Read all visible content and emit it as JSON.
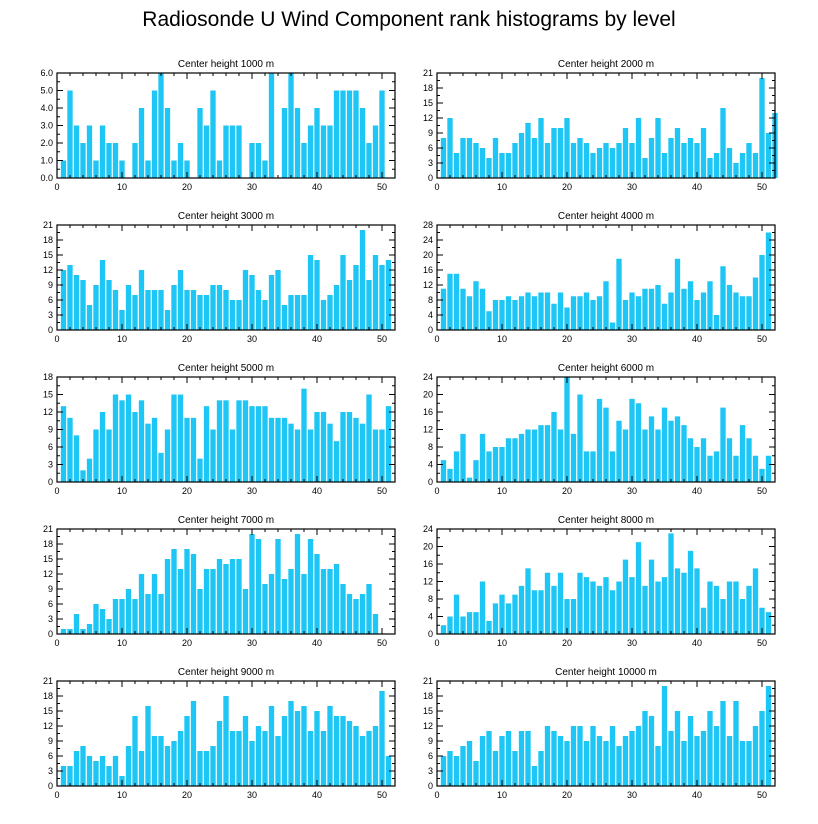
{
  "figure": {
    "title": "Radiosonde U Wind Component rank histograms by level",
    "bar_color": "#1ec6f5"
  },
  "chart_data": [
    {
      "type": "bar",
      "title": "Center height 1000 m",
      "xlim": [
        0,
        52
      ],
      "ylim": [
        0,
        6
      ],
      "xticks": [
        0,
        10,
        20,
        30,
        40,
        50
      ],
      "yticks": [
        0,
        1,
        2,
        3,
        4,
        5,
        6
      ],
      "ytick_labels": [
        "0.0",
        "1.0",
        "2.0",
        "3.0",
        "4.0",
        "5.0",
        "6.0"
      ],
      "values": [
        1,
        5,
        3,
        2,
        3,
        1,
        3,
        2,
        2,
        1,
        0,
        2,
        4,
        1,
        5,
        6,
        4,
        1,
        2,
        1,
        0,
        4,
        3,
        5,
        1,
        3,
        3,
        3,
        0,
        2,
        2,
        1,
        6,
        0,
        4,
        6,
        4,
        2,
        3,
        4,
        3,
        3,
        5,
        5,
        5,
        5,
        4,
        2,
        3,
        5
      ]
    },
    {
      "type": "bar",
      "title": "Center height 2000 m",
      "xlim": [
        0,
        52
      ],
      "ylim": [
        0,
        21
      ],
      "xticks": [
        0,
        10,
        20,
        30,
        40,
        50
      ],
      "yticks": [
        0,
        3,
        6,
        9,
        12,
        15,
        18,
        21
      ],
      "ytick_labels": [
        "0",
        "3",
        "6",
        "9",
        "12",
        "15",
        "18",
        "21"
      ],
      "values": [
        8,
        12,
        5,
        8,
        8,
        7,
        6,
        4,
        8,
        5,
        5,
        7,
        9,
        11,
        8,
        12,
        7,
        10,
        10,
        12,
        7,
        8,
        7,
        5,
        6,
        7,
        6,
        7,
        10,
        7,
        12,
        4,
        8,
        12,
        5,
        8,
        10,
        7,
        8,
        7,
        10,
        4,
        5,
        14,
        6,
        3,
        5,
        7,
        5,
        20,
        9,
        13
      ]
    },
    {
      "type": "bar",
      "title": "Center height 3000 m",
      "xlim": [
        0,
        52
      ],
      "ylim": [
        0,
        21
      ],
      "xticks": [
        0,
        10,
        20,
        30,
        40,
        50
      ],
      "yticks": [
        0,
        3,
        6,
        9,
        12,
        15,
        18,
        21
      ],
      "ytick_labels": [
        "0",
        "3",
        "6",
        "9",
        "12",
        "15",
        "18",
        "21"
      ],
      "values": [
        12,
        13,
        11,
        10,
        5,
        9,
        14,
        10,
        8,
        4,
        9,
        7,
        12,
        8,
        8,
        8,
        4,
        9,
        12,
        8,
        8,
        7,
        7,
        9,
        9,
        8,
        6,
        6,
        12,
        11,
        8,
        6,
        11,
        12,
        5,
        7,
        7,
        7,
        15,
        14,
        6,
        7,
        9,
        15,
        10,
        13,
        20,
        10,
        15,
        13,
        14
      ]
    },
    {
      "type": "bar",
      "title": "Center height 4000 m",
      "xlim": [
        0,
        52
      ],
      "ylim": [
        0,
        28
      ],
      "xticks": [
        0,
        10,
        20,
        30,
        40,
        50
      ],
      "yticks": [
        0,
        4,
        8,
        12,
        16,
        20,
        24,
        28
      ],
      "ytick_labels": [
        "0",
        "4",
        "8",
        "12",
        "16",
        "20",
        "24",
        "28"
      ],
      "values": [
        11,
        15,
        15,
        11,
        9,
        13,
        11,
        5,
        8,
        8,
        9,
        8,
        9,
        10,
        9,
        10,
        10,
        7,
        10,
        6,
        9,
        9,
        10,
        8,
        9,
        13,
        2,
        19,
        8,
        10,
        9,
        11,
        11,
        12,
        7,
        10,
        19,
        11,
        13,
        8,
        10,
        13,
        4,
        17,
        12,
        10,
        9,
        9,
        14,
        20,
        26
      ]
    },
    {
      "type": "bar",
      "title": "Center height 5000 m",
      "xlim": [
        0,
        52
      ],
      "ylim": [
        0,
        18
      ],
      "xticks": [
        0,
        10,
        20,
        30,
        40,
        50
      ],
      "yticks": [
        0,
        3,
        6,
        9,
        12,
        15,
        18
      ],
      "ytick_labels": [
        "0",
        "3",
        "6",
        "9",
        "12",
        "15",
        "18"
      ],
      "values": [
        13,
        11,
        8,
        2,
        4,
        9,
        12,
        9,
        15,
        14,
        15,
        12,
        14,
        10,
        11,
        5,
        9,
        15,
        15,
        11,
        11,
        4,
        13,
        9,
        14,
        14,
        9,
        14,
        14,
        13,
        13,
        13,
        11,
        11,
        11,
        10,
        9,
        16,
        9,
        12,
        12,
        10,
        7,
        12,
        12,
        11,
        10,
        15,
        9,
        9,
        13
      ]
    },
    {
      "type": "bar",
      "title": "Center height 6000 m",
      "xlim": [
        0,
        52
      ],
      "ylim": [
        0,
        24
      ],
      "xticks": [
        0,
        10,
        20,
        30,
        40,
        50
      ],
      "yticks": [
        0,
        4,
        8,
        12,
        16,
        20,
        24
      ],
      "ytick_labels": [
        "0",
        "4",
        "8",
        "12",
        "16",
        "20",
        "24"
      ],
      "values": [
        5,
        3,
        7,
        11,
        1,
        5,
        11,
        7,
        8,
        8,
        10,
        10,
        11,
        12,
        12,
        13,
        13,
        16,
        12,
        24,
        11,
        20,
        7,
        7,
        19,
        17,
        7,
        14,
        12,
        19,
        18,
        12,
        15,
        12,
        17,
        14,
        15,
        13,
        10,
        8,
        10,
        6,
        7,
        17,
        10,
        6,
        13,
        10,
        6,
        3,
        6
      ]
    },
    {
      "type": "bar",
      "title": "Center height 7000 m",
      "xlim": [
        0,
        52
      ],
      "ylim": [
        0,
        21
      ],
      "xticks": [
        0,
        10,
        20,
        30,
        40,
        50
      ],
      "yticks": [
        0,
        3,
        6,
        9,
        12,
        15,
        18,
        21
      ],
      "ytick_labels": [
        "0",
        "3",
        "6",
        "9",
        "12",
        "15",
        "18",
        "21"
      ],
      "values": [
        1,
        1,
        4,
        1,
        2,
        6,
        5,
        3,
        7,
        7,
        9,
        7,
        12,
        8,
        12,
        8,
        15,
        17,
        13,
        17,
        16,
        9,
        13,
        13,
        15,
        14,
        15,
        15,
        9,
        20,
        19,
        10,
        12,
        19,
        11,
        13,
        20,
        12,
        19,
        16,
        13,
        13,
        14,
        10,
        8,
        7,
        8,
        10,
        4
      ]
    },
    {
      "type": "bar",
      "title": "Center height 8000 m",
      "xlim": [
        0,
        52
      ],
      "ylim": [
        0,
        24
      ],
      "xticks": [
        0,
        10,
        20,
        30,
        40,
        50
      ],
      "yticks": [
        0,
        4,
        8,
        12,
        16,
        20,
        24
      ],
      "ytick_labels": [
        "0",
        "4",
        "8",
        "12",
        "16",
        "20",
        "24"
      ],
      "values": [
        2,
        4,
        9,
        4,
        5,
        5,
        12,
        3,
        7,
        9,
        7,
        9,
        11,
        15,
        10,
        10,
        14,
        11,
        14,
        8,
        8,
        14,
        13,
        12,
        11,
        13,
        10,
        12,
        17,
        13,
        21,
        11,
        17,
        12,
        13,
        23,
        15,
        14,
        19,
        15,
        6,
        12,
        11,
        8,
        12,
        12,
        8,
        11,
        15,
        6,
        5
      ]
    },
    {
      "type": "bar",
      "title": "Center height 9000 m",
      "xlim": [
        0,
        52
      ],
      "ylim": [
        0,
        21
      ],
      "xticks": [
        0,
        10,
        20,
        30,
        40,
        50
      ],
      "yticks": [
        0,
        3,
        6,
        9,
        12,
        15,
        18,
        21
      ],
      "ytick_labels": [
        "0",
        "3",
        "6",
        "9",
        "12",
        "15",
        "18",
        "21"
      ],
      "values": [
        4,
        4,
        7,
        8,
        6,
        5,
        6,
        4,
        6,
        2,
        8,
        14,
        7,
        16,
        10,
        10,
        8,
        9,
        11,
        14,
        17,
        7,
        7,
        8,
        13,
        18,
        11,
        11,
        14,
        9,
        12,
        11,
        16,
        10,
        14,
        17,
        15,
        16,
        11,
        15,
        11,
        16,
        14,
        14,
        13,
        12,
        10,
        11,
        12,
        19,
        6
      ]
    },
    {
      "type": "bar",
      "title": "Center height 10000 m",
      "xlim": [
        0,
        52
      ],
      "ylim": [
        0,
        21
      ],
      "xticks": [
        0,
        10,
        20,
        30,
        40,
        50
      ],
      "yticks": [
        0,
        3,
        6,
        9,
        12,
        15,
        18,
        21
      ],
      "ytick_labels": [
        "0",
        "3",
        "6",
        "9",
        "12",
        "15",
        "18",
        "21"
      ],
      "values": [
        6,
        7,
        6,
        8,
        9,
        5,
        10,
        11,
        7,
        10,
        11,
        7,
        11,
        11,
        4,
        7,
        12,
        11,
        10,
        9,
        12,
        12,
        9,
        12,
        10,
        9,
        12,
        8,
        10,
        11,
        12,
        15,
        14,
        8,
        20,
        11,
        15,
        9,
        14,
        10,
        11,
        15,
        12,
        17,
        10,
        17,
        9,
        9,
        12,
        15,
        20
      ]
    }
  ]
}
